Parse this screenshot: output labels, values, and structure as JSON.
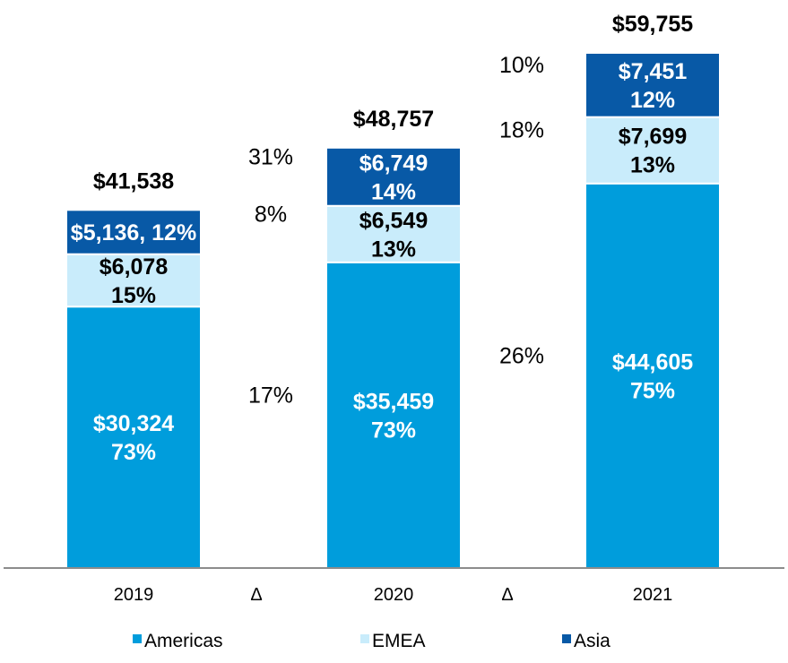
{
  "chart_data": {
    "type": "bar",
    "stacked": true,
    "title": "",
    "xlabel": "",
    "ylabel": "",
    "categories": [
      "2019",
      "2020",
      "2021"
    ],
    "ylim": [
      0,
      60000
    ],
    "grid": false,
    "legend_position": "bottom",
    "series": [
      {
        "name": "Americas",
        "color": "#009ddc",
        "label_color": "#ffffff",
        "values": [
          30324,
          35459,
          44605
        ],
        "labels": [
          [
            "$30,324",
            "73%"
          ],
          [
            "$35,459",
            "73%"
          ],
          [
            "$44,605",
            "75%"
          ]
        ]
      },
      {
        "name": "EMEA",
        "color": "#c9ecfb",
        "label_color": "#000000",
        "values": [
          6078,
          6549,
          7699
        ],
        "labels": [
          [
            "$6,078",
            "15%"
          ],
          [
            "$6,549",
            "13%"
          ],
          [
            "$7,699",
            "13%"
          ]
        ]
      },
      {
        "name": "Asia",
        "color": "#0859a6",
        "label_color": "#ffffff",
        "values": [
          5136,
          6749,
          7451
        ],
        "labels": [
          [
            "$5,136, 12%"
          ],
          [
            "$6,749",
            "14%"
          ],
          [
            "$7,451",
            "12%"
          ]
        ]
      }
    ],
    "totals": [
      "$41,538",
      "$48,757",
      "$59,755"
    ],
    "delta_columns": [
      {
        "tick": "Δ",
        "values": [
          "17%",
          "8%",
          "31%"
        ]
      },
      {
        "tick": "Δ",
        "values": [
          "26%",
          "18%",
          "10%"
        ]
      }
    ]
  }
}
